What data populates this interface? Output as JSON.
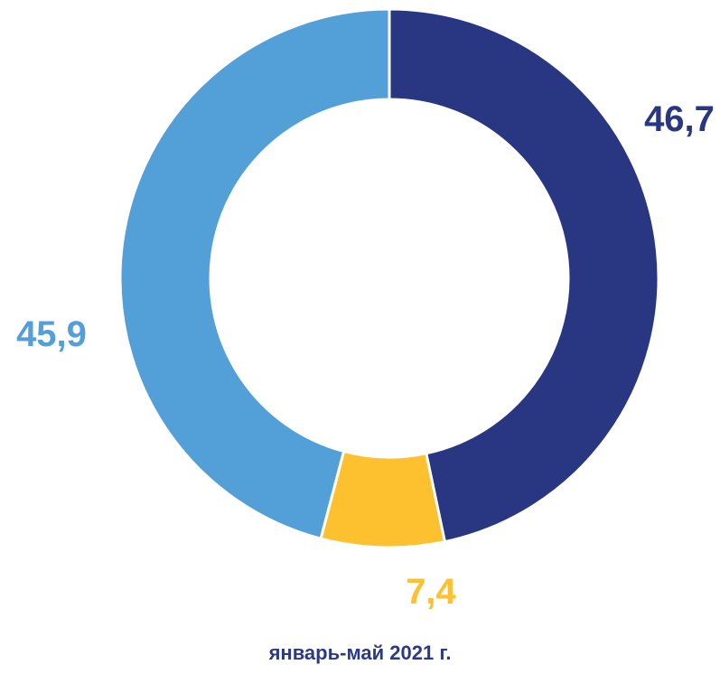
{
  "chart_data": {
    "type": "pie",
    "variant": "donut",
    "caption": "январь-май 2021 г.",
    "slices": [
      {
        "value": 46.7,
        "label": "46,7",
        "color": "#293783"
      },
      {
        "value": 7.4,
        "label": "7,4",
        "color": "#fdc12f"
      },
      {
        "value": 45.9,
        "label": "45,9",
        "color": "#539fd8"
      }
    ],
    "start_angle_deg": 0,
    "direction": "clockwise",
    "separator_color": "#ffffff",
    "caption_color": "#2a3a88"
  }
}
